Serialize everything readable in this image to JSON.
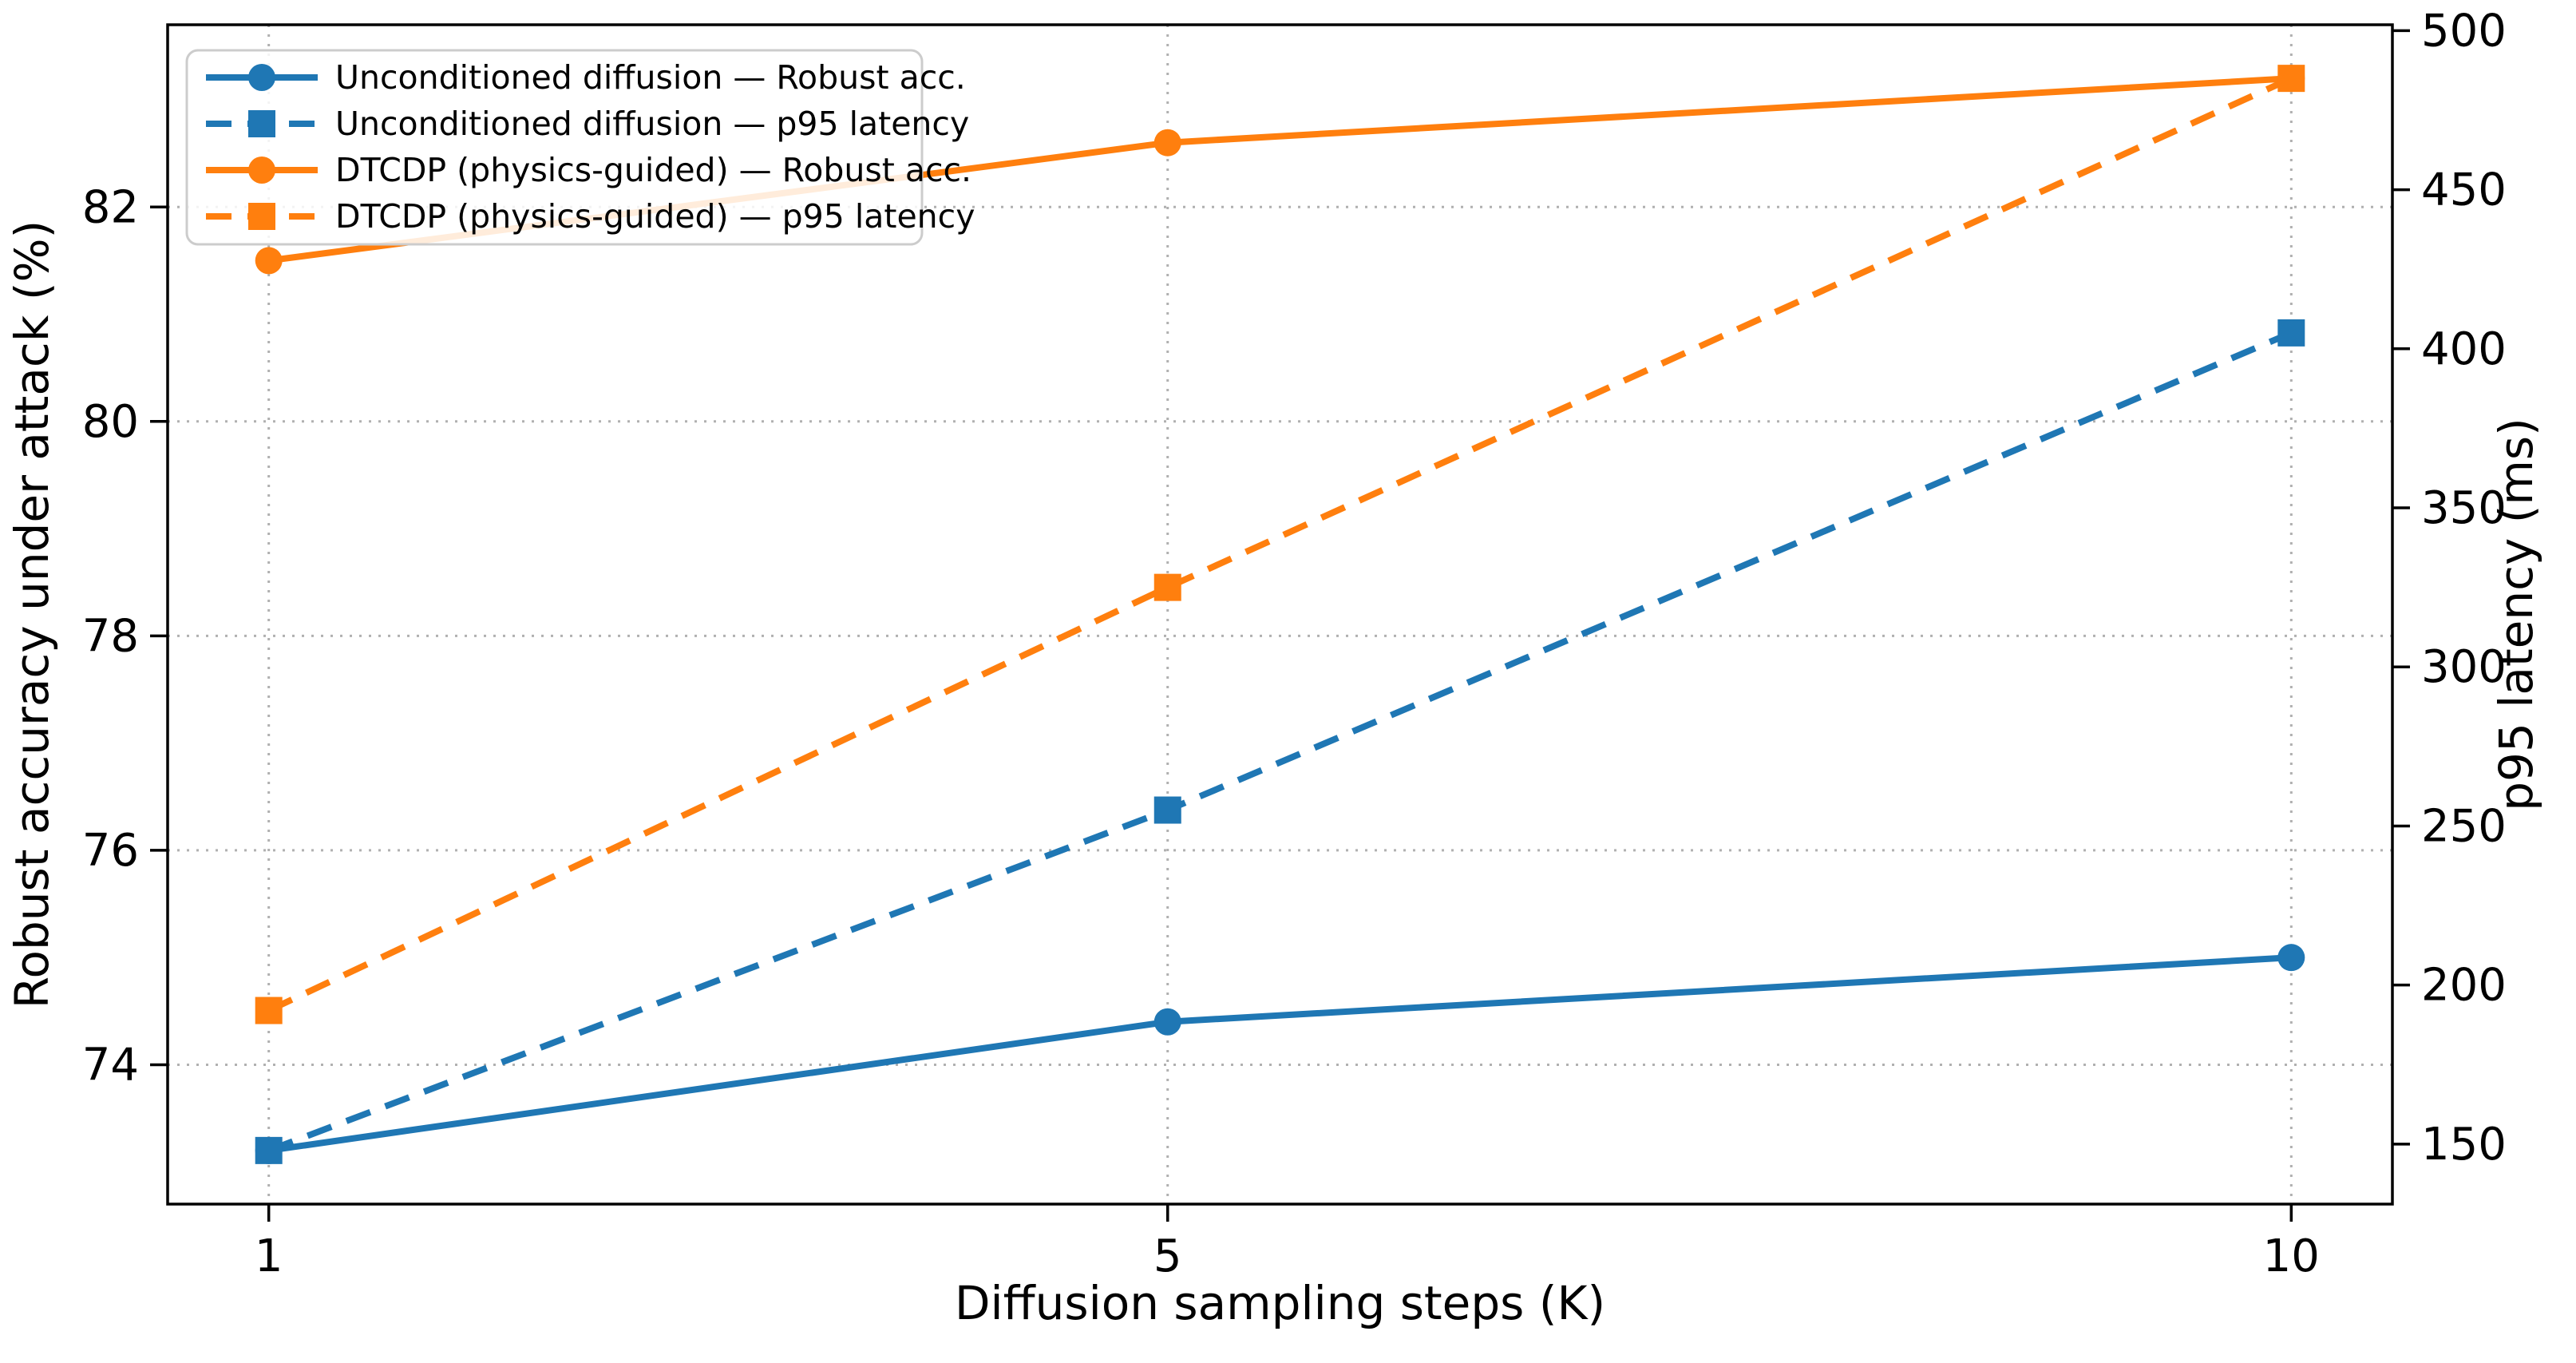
{
  "figure": {
    "background": "#ffffff",
    "chart_data": {
      "type": "line",
      "title": "",
      "x": [
        1,
        5,
        10
      ],
      "xticks": [
        "1",
        "5",
        "10"
      ],
      "xlabel": "Diffusion sampling steps (K)",
      "xlim": [
        0.55,
        10.45
      ],
      "left_axis": {
        "label": "Robust accuracy under attack (%)",
        "ticks": [
          "74",
          "76",
          "78",
          "80",
          "82"
        ],
        "tick_values": [
          74,
          76,
          78,
          80,
          82
        ],
        "lim": [
          72.7,
          83.7
        ]
      },
      "right_axis": {
        "label": "p95 latency (ms)",
        "ticks": [
          "150",
          "200",
          "250",
          "300",
          "350",
          "400",
          "450",
          "500"
        ],
        "tick_values": [
          150,
          200,
          250,
          300,
          350,
          400,
          450,
          500
        ],
        "lim": [
          131.15,
          501.85
        ]
      },
      "series": [
        {
          "name": "Unconditioned diffusion — Robust acc.",
          "axis": "left",
          "color": "#1f77b4",
          "line": "solid",
          "marker": "circle",
          "values": [
            73.2,
            74.4,
            75.0
          ]
        },
        {
          "name": "Unconditioned diffusion — p95 latency",
          "axis": "right",
          "color": "#1f77b4",
          "line": "dashed",
          "marker": "square",
          "values": [
            148,
            255,
            405
          ]
        },
        {
          "name": "DTCDP (physics-guided) — Robust acc.",
          "axis": "left",
          "color": "#ff7f0e",
          "line": "solid",
          "marker": "circle",
          "values": [
            81.5,
            82.6,
            83.2
          ]
        },
        {
          "name": "DTCDP (physics-guided) — p95 latency",
          "axis": "right",
          "color": "#ff7f0e",
          "line": "dashed",
          "marker": "square",
          "values": [
            192,
            325,
            485
          ]
        }
      ],
      "legend": {
        "location": "upper left"
      },
      "grid": {
        "show": true,
        "style": "dotted"
      },
      "colors": {
        "blue": "#1f77b4",
        "orange": "#ff7f0e",
        "grid": "#b0b0b0",
        "spine": "#000000",
        "text": "#000000",
        "legend_border": "#cccccc",
        "legend_bg": "#ffffff"
      }
    }
  }
}
